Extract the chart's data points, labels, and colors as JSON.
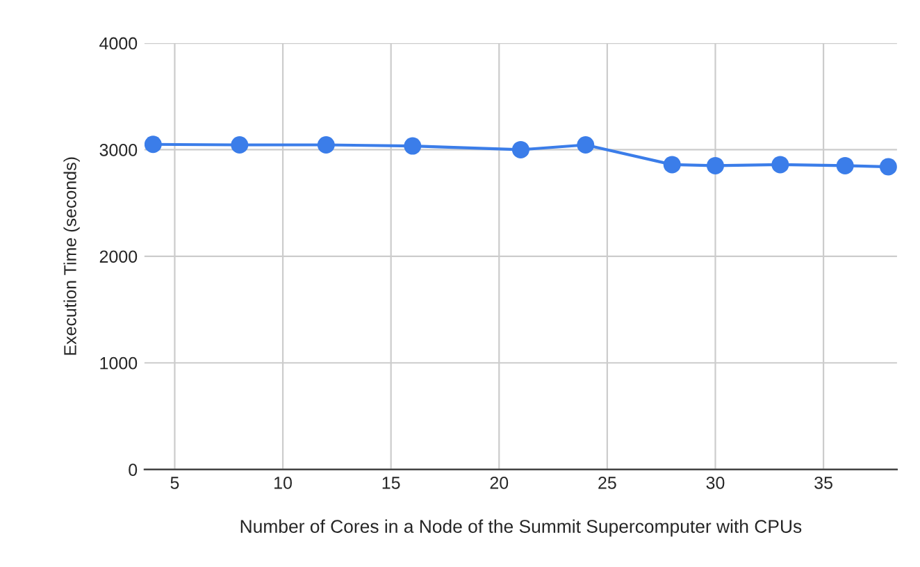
{
  "chart_data": {
    "type": "line",
    "xlabel": "Number of Cores in a Node of the Summit Supercomputer with CPUs",
    "ylabel": "Execution Time (seconds)",
    "x": [
      4,
      8,
      12,
      16,
      21,
      24,
      28,
      30,
      33,
      36,
      38
    ],
    "series": [
      {
        "color": "#3b7de9",
        "values": [
          3050,
          3045,
          3045,
          3035,
          3000,
          3045,
          2860,
          2850,
          2860,
          2850,
          2840
        ]
      }
    ],
    "xlim": [
      3.6,
      38.4
    ],
    "xticks": [
      5,
      10,
      15,
      20,
      25,
      30,
      35
    ],
    "ylim": [
      0,
      4000
    ],
    "yticks": [
      0,
      1000,
      2000,
      3000,
      4000
    ],
    "grid": true,
    "marker": "circle",
    "line_style": "solid"
  }
}
